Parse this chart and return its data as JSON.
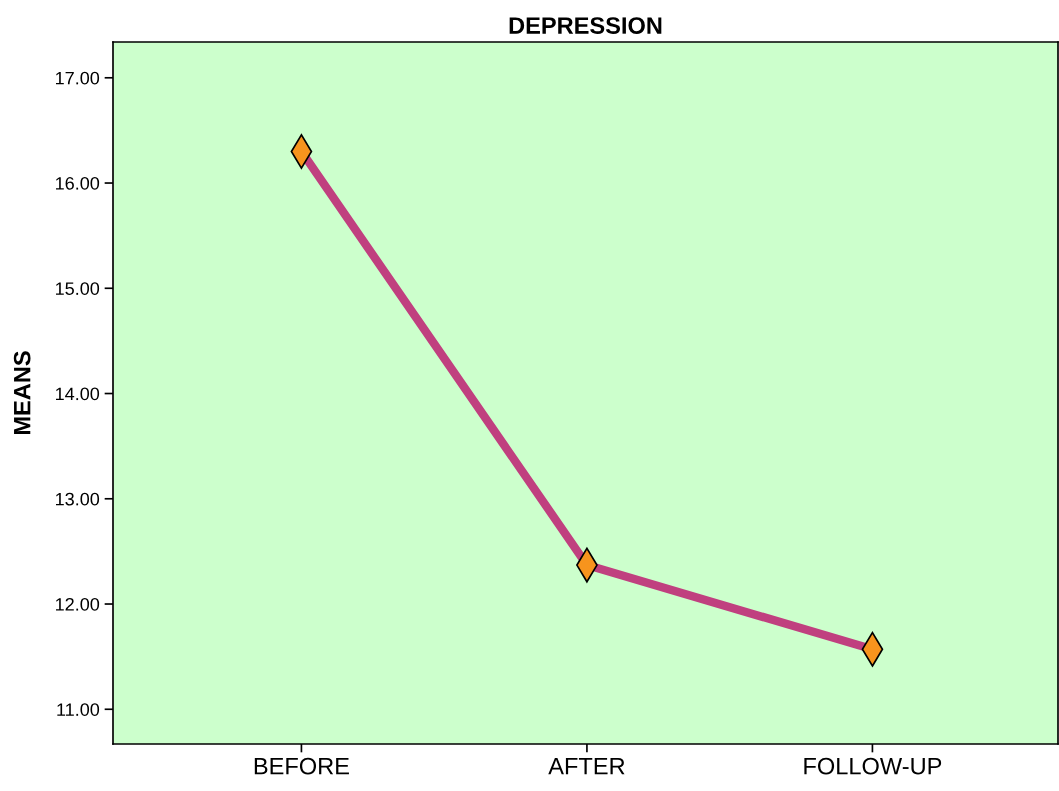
{
  "chart_data": {
    "type": "line",
    "title": "DEPRESSION",
    "ylabel": "MEANS",
    "categories": [
      "BEFORE",
      "AFTER",
      "FOLLOW-UP"
    ],
    "series": [
      {
        "color": "#c0407f",
        "values": [
          16.3,
          12.37,
          11.57
        ]
      }
    ],
    "marker": "diamond",
    "line_style": "solid",
    "ylim": [
      10.67,
      17.34
    ],
    "yticks": [
      {
        "value": 11,
        "label": "11.00"
      },
      {
        "value": 12,
        "label": "12.00"
      },
      {
        "value": 13,
        "label": "13.00"
      },
      {
        "value": 14,
        "label": "14.00"
      },
      {
        "value": 15,
        "label": "15.00"
      },
      {
        "value": 16,
        "label": "16.00"
      },
      {
        "value": 17,
        "label": "17.00"
      }
    ],
    "grid": false,
    "legend": false
  }
}
